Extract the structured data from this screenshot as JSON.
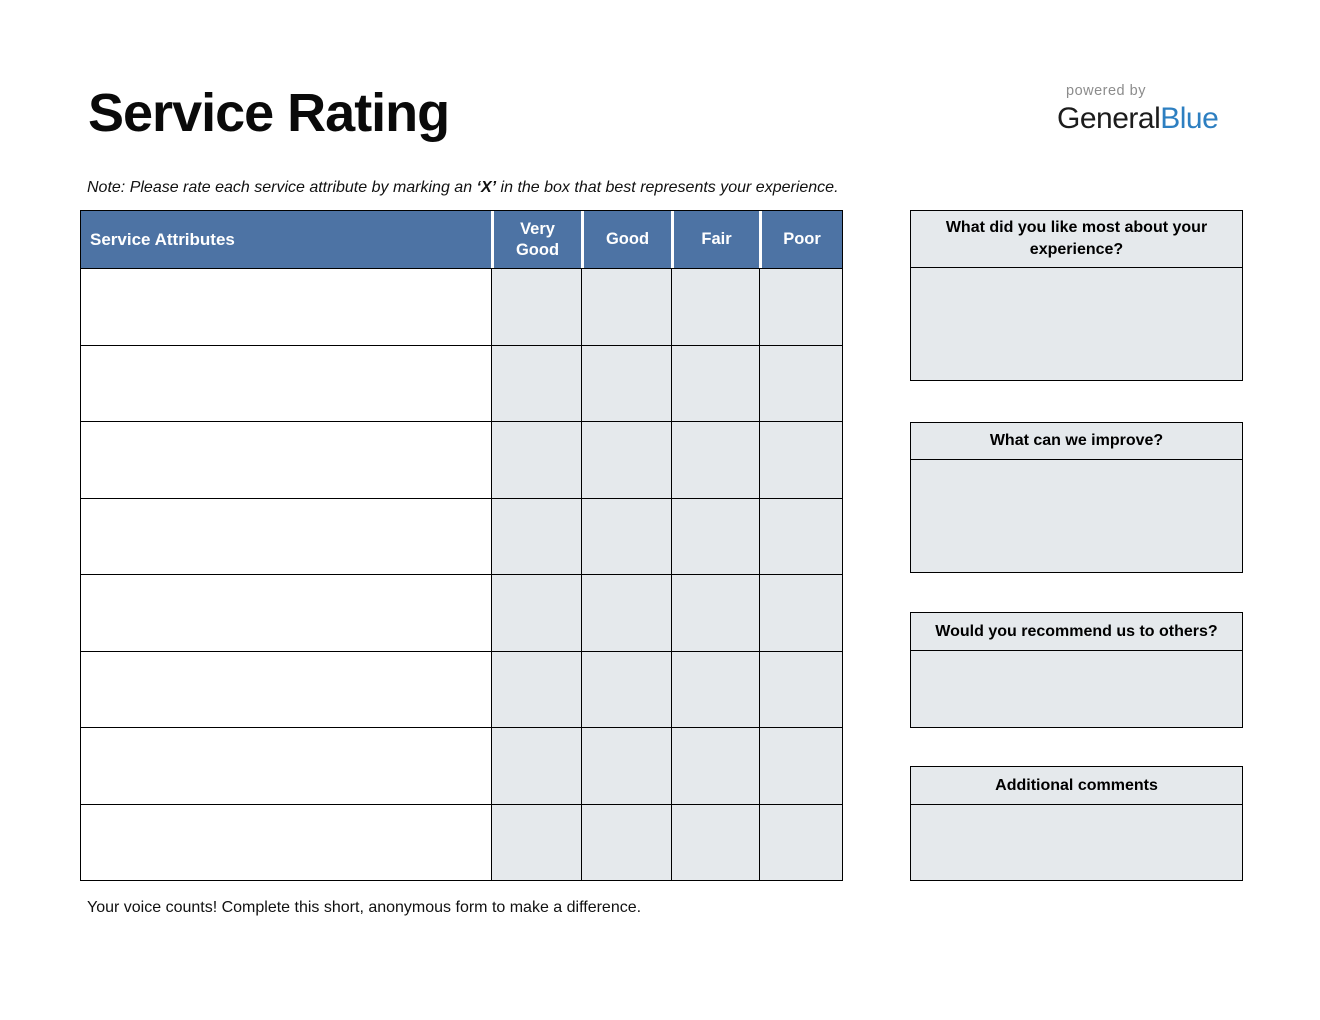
{
  "page": {
    "title": "Service Rating",
    "note": {
      "prefix": "Note: Please rate each service attribute by marking an ",
      "highlight": "‘X’",
      "suffix": " in the box that best represents your experience."
    },
    "footer": "Your voice counts! Complete this short, anonymous form to make a difference."
  },
  "logo": {
    "powered_by": "powered by",
    "brand_general": "General",
    "brand_blue": "Blue"
  },
  "table": {
    "attribute_header": "Service Attributes",
    "rating_headers": [
      "Very Good",
      "Good",
      "Fair",
      "Poor"
    ],
    "row_count": 8
  },
  "panels": [
    {
      "title": "What did you like most about your experience?"
    },
    {
      "title": "What can we improve?"
    },
    {
      "title": "Would you recommend us to others?"
    },
    {
      "title": "Additional comments"
    }
  ],
  "colors": {
    "header_blue": "#4d73a4",
    "cell_fill": "#e5e9ec",
    "brand_blue": "#2d7fc1",
    "powered_by_gray": "#8c8c8c"
  }
}
